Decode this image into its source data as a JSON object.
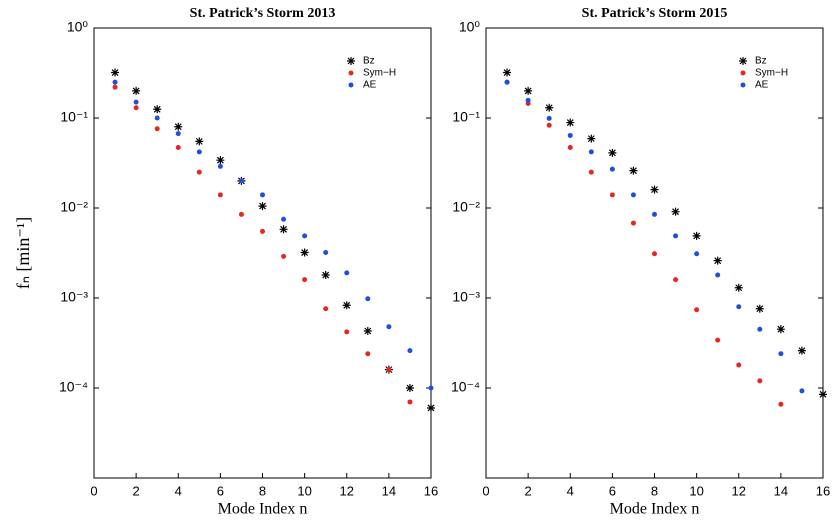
{
  "chart_data": [
    {
      "type": "scatter",
      "title": "St. Patrick’s Storm 2013",
      "xlabel": "Mode Index n",
      "ylabel": "fₙ [min⁻¹]",
      "x": [
        1,
        2,
        3,
        4,
        5,
        6,
        7,
        8,
        9,
        10,
        11,
        12,
        13,
        14,
        15,
        16
      ],
      "series": [
        {
          "name": "Bz",
          "color": "#000000",
          "marker": "star",
          "values": [
            0.32,
            0.2,
            0.125,
            0.08,
            0.055,
            0.034,
            0.02,
            0.0105,
            0.0058,
            0.0032,
            0.0018,
            0.00083,
            0.00043,
            0.00016,
            0.0001,
            6e-05
          ]
        },
        {
          "name": "Sym−H",
          "color": "#e8261e",
          "marker": "dot",
          "values": [
            0.22,
            0.13,
            0.076,
            0.047,
            0.025,
            0.014,
            0.0085,
            0.0055,
            0.0029,
            0.0016,
            0.00076,
            0.00042,
            0.00024,
            0.00016,
            7e-05,
            null
          ]
        },
        {
          "name": "AE",
          "color": "#1f4fe0",
          "marker": "dot",
          "values": [
            0.25,
            0.15,
            0.1,
            0.067,
            0.042,
            0.029,
            0.02,
            0.014,
            0.0075,
            0.0049,
            0.0032,
            0.0019,
            0.00098,
            0.00048,
            0.00026,
            0.0001
          ]
        }
      ],
      "xlim": [
        0,
        16
      ],
      "xticks": [
        0,
        2,
        4,
        6,
        8,
        10,
        12,
        14,
        16
      ],
      "ylim": [
        1e-05,
        1
      ],
      "yscale": "log",
      "yticks": [
        {
          "value": 1,
          "label": "10⁰"
        },
        {
          "value": 0.1,
          "label": "10⁻¹"
        },
        {
          "value": 0.01,
          "label": "10⁻²"
        },
        {
          "value": 0.001,
          "label": "10⁻³"
        },
        {
          "value": 0.0001,
          "label": "10⁻⁴"
        }
      ],
      "legend": "upper right",
      "grid": false
    },
    {
      "type": "scatter",
      "title": "St. Patrick’s Storm 2015",
      "xlabel": "Mode Index n",
      "x": [
        1,
        2,
        3,
        4,
        5,
        6,
        7,
        8,
        9,
        10,
        11,
        12,
        13,
        14,
        15,
        16
      ],
      "series": [
        {
          "name": "Bz",
          "color": "#000000",
          "marker": "star",
          "values": [
            0.32,
            0.2,
            0.13,
            0.089,
            0.059,
            0.041,
            0.026,
            0.016,
            0.0091,
            0.0049,
            0.0026,
            0.0013,
            0.00076,
            0.00045,
            0.00026,
            8.5e-05
          ]
        },
        {
          "name": "Sym−H",
          "color": "#e8261e",
          "marker": "dot",
          "values": [
            0.25,
            0.145,
            0.083,
            0.047,
            0.025,
            0.014,
            0.0068,
            0.0031,
            0.0016,
            0.00074,
            0.00034,
            0.00018,
            0.00012,
            6.6e-05,
            null,
            null
          ]
        },
        {
          "name": "AE",
          "color": "#1f4fe0",
          "marker": "dot",
          "values": [
            0.25,
            0.157,
            0.099,
            0.064,
            0.042,
            0.027,
            0.014,
            0.0085,
            0.0049,
            0.0031,
            0.0018,
            0.0008,
            0.00045,
            0.00024,
            9.3e-05,
            null
          ]
        }
      ],
      "xlim": [
        0,
        16
      ],
      "xticks": [
        0,
        2,
        4,
        6,
        8,
        10,
        12,
        14,
        16
      ],
      "ylim": [
        1e-05,
        1
      ],
      "yscale": "log",
      "yticks": [
        {
          "value": 1,
          "label": "10⁰"
        },
        {
          "value": 0.1,
          "label": "10⁻¹"
        },
        {
          "value": 0.01,
          "label": "10⁻²"
        },
        {
          "value": 0.001,
          "label": "10⁻³"
        },
        {
          "value": 0.0001,
          "label": "10⁻⁴"
        }
      ],
      "legend": "upper right",
      "grid": false
    }
  ]
}
